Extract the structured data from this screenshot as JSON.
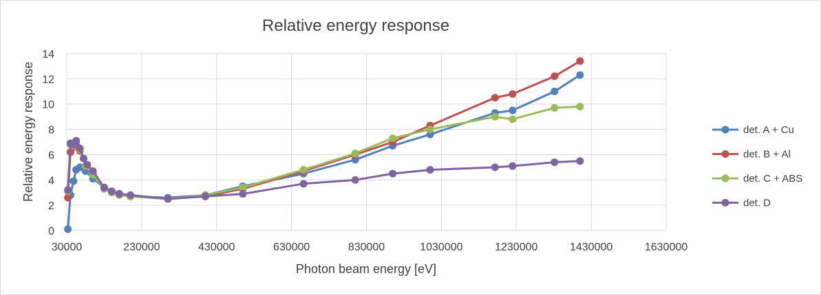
{
  "chart_data": {
    "type": "line",
    "title": "Relative energy response",
    "xlabel": "Photon beam energy [eV]",
    "ylabel": "Relative energy response",
    "xlim": [
      30000,
      1630000
    ],
    "ylim": [
      0,
      14
    ],
    "xticks": [
      30000,
      230000,
      430000,
      630000,
      830000,
      1030000,
      1230000,
      1430000,
      1630000
    ],
    "yticks": [
      0,
      2,
      4,
      6,
      8,
      10,
      12,
      14
    ],
    "grid": true,
    "legend_position": "right",
    "series": [
      {
        "name": "det. A + Cu",
        "color": "#4f81bd",
        "points": [
          [
            33000,
            0.1
          ],
          [
            40000,
            2.8
          ],
          [
            48000,
            3.9
          ],
          [
            55000,
            4.8
          ],
          [
            65000,
            5.0
          ],
          [
            80000,
            4.7
          ],
          [
            100000,
            4.1
          ],
          [
            130000,
            3.4
          ],
          [
            150000,
            3.1
          ],
          [
            170000,
            2.9
          ],
          [
            200000,
            2.7
          ],
          [
            300000,
            2.6
          ],
          [
            400000,
            2.8
          ],
          [
            500000,
            3.5
          ],
          [
            662000,
            4.5
          ],
          [
            800000,
            5.6
          ],
          [
            900000,
            6.7
          ],
          [
            1000000,
            7.6
          ],
          [
            1173000,
            9.3
          ],
          [
            1220000,
            9.5
          ],
          [
            1332000,
            11.0
          ],
          [
            1400000,
            12.3
          ]
        ]
      },
      {
        "name": "det. B + Al",
        "color": "#c0504d",
        "points": [
          [
            33000,
            2.6
          ],
          [
            40000,
            6.2
          ],
          [
            48000,
            6.6
          ],
          [
            55000,
            6.9
          ],
          [
            65000,
            6.3
          ],
          [
            80000,
            5.1
          ],
          [
            100000,
            4.5
          ],
          [
            130000,
            3.3
          ],
          [
            150000,
            3.1
          ],
          [
            170000,
            2.9
          ],
          [
            200000,
            2.7
          ],
          [
            300000,
            2.5
          ],
          [
            400000,
            2.7
          ],
          [
            500000,
            3.3
          ],
          [
            662000,
            4.7
          ],
          [
            800000,
            6.0
          ],
          [
            900000,
            7.0
          ],
          [
            1000000,
            8.3
          ],
          [
            1173000,
            10.5
          ],
          [
            1220000,
            10.8
          ],
          [
            1332000,
            12.2
          ],
          [
            1400000,
            13.4
          ]
        ]
      },
      {
        "name": "det. C + ABS",
        "color": "#9bbb59",
        "points": [
          [
            33000,
            3.1
          ],
          [
            40000,
            6.8
          ],
          [
            48000,
            6.7
          ],
          [
            55000,
            7.0
          ],
          [
            65000,
            6.4
          ],
          [
            80000,
            5.1
          ],
          [
            100000,
            4.4
          ],
          [
            130000,
            3.3
          ],
          [
            150000,
            3.0
          ],
          [
            170000,
            2.8
          ],
          [
            200000,
            2.7
          ],
          [
            300000,
            2.5
          ],
          [
            400000,
            2.8
          ],
          [
            500000,
            3.4
          ],
          [
            662000,
            4.8
          ],
          [
            800000,
            6.1
          ],
          [
            900000,
            7.3
          ],
          [
            1000000,
            8.0
          ],
          [
            1173000,
            9.0
          ],
          [
            1220000,
            8.8
          ],
          [
            1332000,
            9.7
          ],
          [
            1400000,
            9.8
          ]
        ]
      },
      {
        "name": "det. D",
        "color": "#8064a2",
        "points": [
          [
            33000,
            3.2
          ],
          [
            40000,
            6.9
          ],
          [
            48000,
            6.8
          ],
          [
            55000,
            7.1
          ],
          [
            65000,
            6.5
          ],
          [
            75000,
            5.7
          ],
          [
            85000,
            5.2
          ],
          [
            100000,
            4.7
          ],
          [
            130000,
            3.4
          ],
          [
            150000,
            3.1
          ],
          [
            170000,
            2.9
          ],
          [
            200000,
            2.8
          ],
          [
            300000,
            2.5
          ],
          [
            400000,
            2.7
          ],
          [
            500000,
            2.9
          ],
          [
            662000,
            3.7
          ],
          [
            800000,
            4.0
          ],
          [
            900000,
            4.5
          ],
          [
            1000000,
            4.8
          ],
          [
            1173000,
            5.0
          ],
          [
            1220000,
            5.1
          ],
          [
            1332000,
            5.4
          ],
          [
            1400000,
            5.5
          ]
        ]
      }
    ]
  }
}
